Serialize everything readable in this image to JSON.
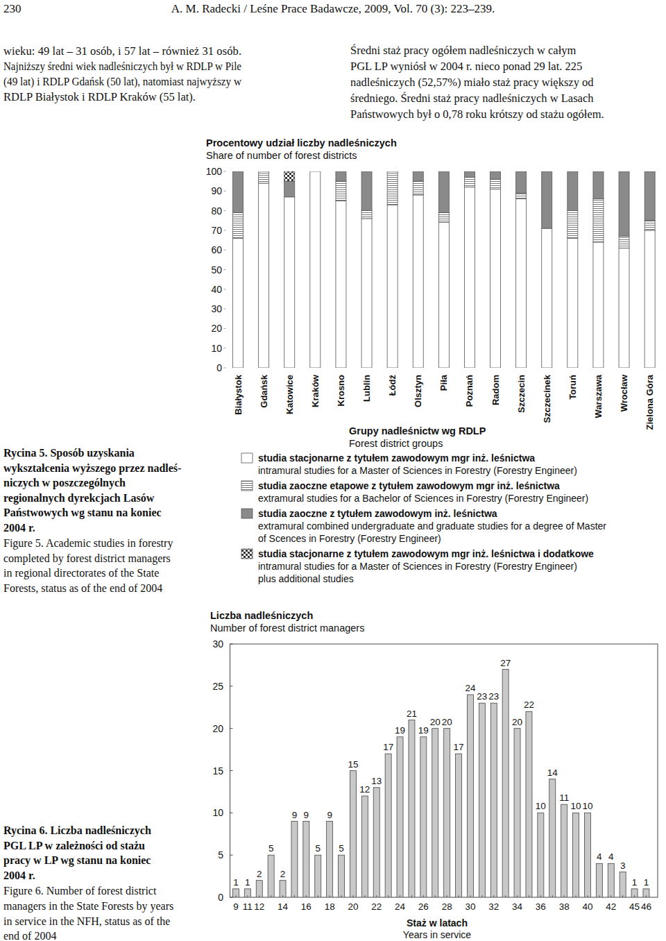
{
  "header": {
    "page_number": "230",
    "citation": "A. M. Radecki / Leśne Prace Badawcze, 2009, Vol. 70 (3): 223–239."
  },
  "text_left": [
    "wieku: 49 lat – 31 osób, i 57 lat – również 31 osób.",
    "Najniższy średni wiek nadleśniczych był w RDLP w Pile",
    "(49 lat) i RDLP Gdańsk (50 lat), natomiast najwyższy w",
    "RDLP Białystok i RDLP Kraków (55 lat)."
  ],
  "text_right": [
    "Średni staż pracy ogółem nadleśniczych w całym",
    "PGL LP wyniósł w 2004 r. nieco ponad 29 lat. 225",
    "nadleśniczych (52,57%) miało staż pracy większy od",
    "średniego. Średni staż pracy nadleśniczych w Lasach",
    "Państwowych był o 0,78 roku krótszy od stażu ogółem."
  ],
  "figure_5_caption": {
    "pl": [
      "Rycina 5. Sposób uzyskania",
      "wykształcenia wyższego przez nadleś-",
      "niczych w poszczególnych",
      "regionalnych dyrekcjach Lasów",
      "Państwowych wg stanu na koniec",
      "2004 r."
    ],
    "en": [
      "Figure 5. Academic studies in forestry",
      "completed by forest district managers",
      "in regional directorates of the State",
      "Forests, status as of the end of 2004"
    ]
  },
  "figure_6_caption": {
    "pl": [
      "Rycina 6. Liczba nadleśniczych",
      "PGL LP w zależności od stażu",
      "pracy w LP wg stanu na koniec",
      "2004 r."
    ],
    "en": [
      "Figure 6. Number of forest district",
      "managers in the State Forests by years",
      "in service in the NFH, status as of the",
      "end of 2004"
    ]
  },
  "chart_data": [
    {
      "type": "bar",
      "stacked": true,
      "title": "Procentowy udział liczby nadleśniczych\nShare of number of forest districts",
      "xlabel": "Grupy nadleśnictw wg RDLP\nForest district groups",
      "categories": [
        "Białystok",
        "Gdańsk",
        "Katowice",
        "Kraków",
        "Krosno",
        "Lublin",
        "Łódź",
        "Olsztyn",
        "Piła",
        "Poznań",
        "Radom",
        "Szczecin",
        "Szczecinek",
        "Toruń",
        "Warszawa",
        "Wrocław",
        "Zielona Góra"
      ],
      "series": [
        {
          "name": "studia stacjonarne z tytułem zawodowym mgr inż. leśnictwa\nintramural studies for a Master of Sciences in Forestry (Forestry Engineer)",
          "color": "#ffffff",
          "values": [
            66,
            94,
            87,
            100,
            85,
            76,
            83,
            88,
            74,
            92,
            91,
            86,
            71,
            66,
            64,
            61,
            70
          ]
        },
        {
          "name": "studia zaoczne etapowe z tytułem zawodowym mgr inż. leśnictwa\nextramural studies for a Bachelor of Sciences in Forestry (Forestry Engineer)",
          "color": "#ffffff",
          "values": [
            13,
            6,
            0,
            0,
            10,
            4,
            17,
            7,
            5,
            5,
            5,
            3,
            0,
            14,
            22,
            6,
            5
          ]
        },
        {
          "name": "studia zaoczne z tytułem zawodowym inż. leśnictwa\nextramural combined undergraduate and graduate studies for a degree of Master\nof Scences in Forestry (Forestry Engineer)",
          "color": "#8a8a8a",
          "values": [
            21,
            0,
            8,
            0,
            5,
            20,
            0,
            5,
            21,
            3,
            4,
            11,
            29,
            20,
            14,
            33,
            25
          ]
        },
        {
          "name": "studia stacjonarne z tytułem zawodowym mgr inż. leśnictwa i dodatkowe\nintramural studies for a Master of Sciences in Forestry (Forestry Engineer)\nplus additional studies",
          "color": "#ffffff",
          "values": [
            0,
            0,
            5,
            0,
            0,
            0,
            0,
            0,
            0,
            0,
            0,
            0,
            0,
            0,
            0,
            0,
            0
          ]
        }
      ],
      "ylim": [
        0,
        100
      ],
      "yticks": [
        0,
        10,
        20,
        30,
        40,
        50,
        60,
        70,
        80,
        90,
        100
      ],
      "grid": false,
      "legend": "bottom"
    },
    {
      "type": "bar",
      "title": "Liczba nadleśniczych\nNumber of forest district managers",
      "xlabel": "Staż w latach\nYears in service",
      "categories": [
        "9",
        "11",
        "12",
        null,
        "14",
        null,
        "16",
        null,
        "18",
        null,
        "20",
        null,
        "22",
        null,
        "24",
        null,
        "26",
        null,
        "28",
        null,
        "30",
        null,
        "32",
        null,
        "34",
        null,
        "36",
        null,
        "38",
        null,
        "40",
        null,
        "42",
        null,
        "45",
        "46"
      ],
      "values": [
        1,
        1,
        2,
        5,
        2,
        9,
        9,
        5,
        9,
        5,
        15,
        12,
        13,
        17,
        19,
        21,
        19,
        20,
        20,
        17,
        24,
        23,
        23,
        27,
        20,
        22,
        10,
        14,
        11,
        10,
        10,
        4,
        4,
        3,
        1,
        1
      ],
      "color": "#c8c8c8",
      "ylim": [
        0,
        30
      ],
      "yticks": [
        0,
        5,
        10,
        15,
        20,
        25,
        30
      ],
      "grid": false,
      "data_labels": true
    }
  ]
}
